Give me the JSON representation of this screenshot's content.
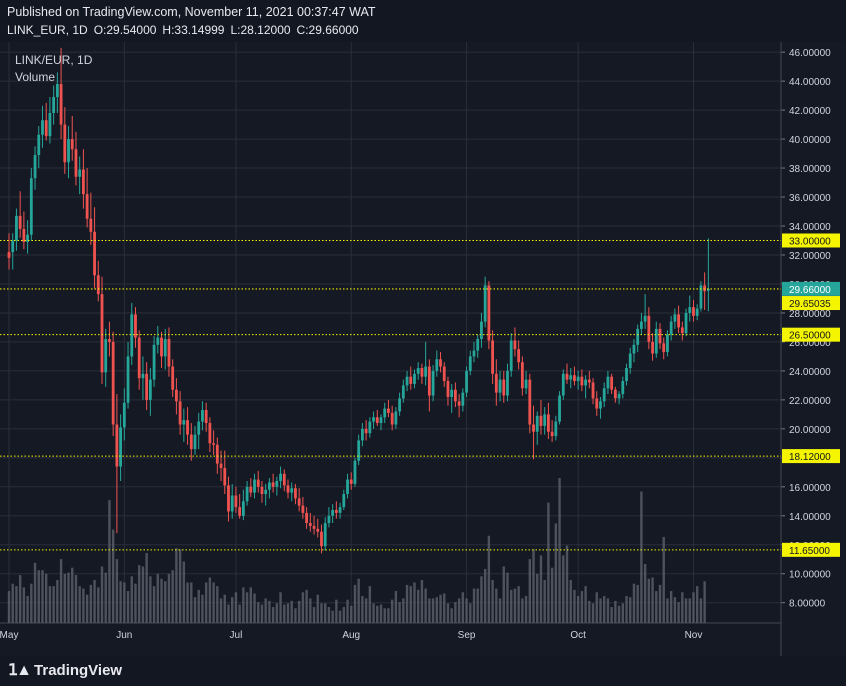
{
  "header": {
    "published": "Published on TradingView.com, November 11, 2021 00:37:47 WAT",
    "symbol": "LINK_EUR, 1D",
    "open": "O:29.54000",
    "high": "H:33.14999",
    "low": "L:28.12000",
    "close": "C:29.66000"
  },
  "legend": {
    "title": "LINK/EUR, 1D",
    "volume": "Volume"
  },
  "footer": {
    "brand": "TradingView",
    "brand_icon": "tradingview-logo-icon"
  },
  "colors": {
    "background": "#151924",
    "up": "#26a69a",
    "down": "#ef5350",
    "grid": "#2a2e39",
    "level": "#f5f500",
    "volume": "#5d606b",
    "last_price": "#26a69a"
  },
  "chart_data": {
    "type": "candlestick",
    "symbol": "LINK/EUR",
    "timeframe": "1D",
    "ylim": [
      6.6,
      46.7
    ],
    "y_ticks": [
      "8.00000",
      "10.00000",
      "12.00000",
      "14.00000",
      "16.00000",
      "18.00000",
      "20.00000",
      "22.00000",
      "24.00000",
      "26.00000",
      "28.00000",
      "30.00000",
      "32.00000",
      "34.00000",
      "36.00000",
      "38.00000",
      "40.00000",
      "42.00000",
      "44.00000",
      "46.00000"
    ],
    "x_ticks": [
      {
        "label": "May",
        "day": 0
      },
      {
        "label": "Jun",
        "day": 31
      },
      {
        "label": "Jul",
        "day": 61
      },
      {
        "label": "Aug",
        "day": 92
      },
      {
        "label": "Sep",
        "day": 123
      },
      {
        "label": "Oct",
        "day": 153
      },
      {
        "label": "Nov",
        "day": 184
      }
    ],
    "days": 194,
    "price_levels": [
      {
        "value": 33.0,
        "label": "33.00000"
      },
      {
        "value": 29.66,
        "label": "29.66000",
        "kind": "last"
      },
      {
        "value": 29.65035,
        "label": "29.65035"
      },
      {
        "value": 26.5,
        "label": "26.50000"
      },
      {
        "value": 18.12,
        "label": "18.12000"
      },
      {
        "value": 11.65,
        "label": "11.65000"
      }
    ],
    "ohlc": [
      [
        32.2,
        33.5,
        31.0,
        31.8
      ],
      [
        32.2,
        33.5,
        31.0,
        33.0
      ],
      [
        33.0,
        35.2,
        32.3,
        34.7
      ],
      [
        34.7,
        36.4,
        33.2,
        33.8
      ],
      [
        33.8,
        35.0,
        32.4,
        32.9
      ],
      [
        32.9,
        34.4,
        32.1,
        33.4
      ],
      [
        33.4,
        38.0,
        33.0,
        37.3
      ],
      [
        37.3,
        39.5,
        36.5,
        38.9
      ],
      [
        38.9,
        40.9,
        38.0,
        40.3
      ],
      [
        40.3,
        42.3,
        39.4,
        41.3
      ],
      [
        41.3,
        42.5,
        39.9,
        40.2
      ],
      [
        40.2,
        42.9,
        39.7,
        41.8
      ],
      [
        41.8,
        43.7,
        41.0,
        42.9
      ],
      [
        42.9,
        44.6,
        41.8,
        43.8
      ],
      [
        43.8,
        46.3,
        40.0,
        41.0
      ],
      [
        41.0,
        42.2,
        37.6,
        38.4
      ],
      [
        38.4,
        40.9,
        37.3,
        40.0
      ],
      [
        40.0,
        41.6,
        38.5,
        39.3
      ],
      [
        39.3,
        40.5,
        36.8,
        37.4
      ],
      [
        37.4,
        38.8,
        36.2,
        37.9
      ],
      [
        37.9,
        39.3,
        35.2,
        36.2
      ],
      [
        36.2,
        38.0,
        33.9,
        34.5
      ],
      [
        34.5,
        36.3,
        32.7,
        33.6
      ],
      [
        33.6,
        35.3,
        29.7,
        30.6
      ],
      [
        30.6,
        31.6,
        28.8,
        29.3
      ],
      [
        29.3,
        30.5,
        23.1,
        23.9
      ],
      [
        23.9,
        26.9,
        22.9,
        26.2
      ],
      [
        26.2,
        27.4,
        25.0,
        26.0
      ],
      [
        26.0,
        26.7,
        19.5,
        20.3
      ],
      [
        20.3,
        22.4,
        12.8,
        17.4
      ],
      [
        17.4,
        21.0,
        16.4,
        20.1
      ],
      [
        20.1,
        22.8,
        19.2,
        21.8
      ],
      [
        21.8,
        26.0,
        21.4,
        25.0
      ],
      [
        25.0,
        28.7,
        24.4,
        27.9
      ],
      [
        27.9,
        28.4,
        25.6,
        26.3
      ],
      [
        26.3,
        26.8,
        22.7,
        23.5
      ],
      [
        23.5,
        25.0,
        22.0,
        23.8
      ],
      [
        23.8,
        24.6,
        21.3,
        22.0
      ],
      [
        22.0,
        24.2,
        20.9,
        23.4
      ],
      [
        23.4,
        26.4,
        22.9,
        25.8
      ],
      [
        25.8,
        27.1,
        25.2,
        26.3
      ],
      [
        26.3,
        26.7,
        24.2,
        25.0
      ],
      [
        25.0,
        26.9,
        24.1,
        26.2
      ],
      [
        26.2,
        27.0,
        23.6,
        24.3
      ],
      [
        24.3,
        24.8,
        22.2,
        22.7
      ],
      [
        22.7,
        23.5,
        21.0,
        21.9
      ],
      [
        21.9,
        22.6,
        19.6,
        20.3
      ],
      [
        20.3,
        21.4,
        19.1,
        20.6
      ],
      [
        20.6,
        21.5,
        18.9,
        19.6
      ],
      [
        19.6,
        20.4,
        17.8,
        18.6
      ],
      [
        18.6,
        20.2,
        18.2,
        19.6
      ],
      [
        19.6,
        21.1,
        18.6,
        20.5
      ],
      [
        20.5,
        21.9,
        19.9,
        21.3
      ],
      [
        21.3,
        21.8,
        19.8,
        20.4
      ],
      [
        20.4,
        20.8,
        18.4,
        19.0
      ],
      [
        19.0,
        19.9,
        18.2,
        18.9
      ],
      [
        18.9,
        19.4,
        16.9,
        17.6
      ],
      [
        17.6,
        18.5,
        16.4,
        17.3
      ],
      [
        17.3,
        18.5,
        15.5,
        16.1
      ],
      [
        16.1,
        16.7,
        13.6,
        14.3
      ],
      [
        14.3,
        16.2,
        13.8,
        15.4
      ],
      [
        15.4,
        16.0,
        14.2,
        14.6
      ],
      [
        14.6,
        15.5,
        13.8,
        14.0
      ],
      [
        14.0,
        15.8,
        13.7,
        15.0
      ],
      [
        15.0,
        16.4,
        14.7,
        16.0
      ],
      [
        16.0,
        16.6,
        15.3,
        15.6
      ],
      [
        15.6,
        16.9,
        15.2,
        16.5
      ],
      [
        16.5,
        17.1,
        15.6,
        16.0
      ],
      [
        16.0,
        16.4,
        14.9,
        15.5
      ],
      [
        15.5,
        16.2,
        14.7,
        15.8
      ],
      [
        15.8,
        16.6,
        15.2,
        16.3
      ],
      [
        16.3,
        16.9,
        15.6,
        16.0
      ],
      [
        16.0,
        16.7,
        15.4,
        16.4
      ],
      [
        16.4,
        17.4,
        15.9,
        16.9
      ],
      [
        16.9,
        17.2,
        15.7,
        16.1
      ],
      [
        16.1,
        16.5,
        15.2,
        15.6
      ],
      [
        15.6,
        16.3,
        15.0,
        15.9
      ],
      [
        15.9,
        16.2,
        14.8,
        15.2
      ],
      [
        15.2,
        15.9,
        14.3,
        14.7
      ],
      [
        14.7,
        15.3,
        13.8,
        14.2
      ],
      [
        14.2,
        14.6,
        13.1,
        13.5
      ],
      [
        13.5,
        14.2,
        12.9,
        13.3
      ],
      [
        13.3,
        14.0,
        12.7,
        13.1
      ],
      [
        13.1,
        13.8,
        12.5,
        12.9
      ],
      [
        12.9,
        13.4,
        11.4,
        11.9
      ],
      [
        11.9,
        13.9,
        11.6,
        13.5
      ],
      [
        13.5,
        14.6,
        13.2,
        14.0
      ],
      [
        14.0,
        14.8,
        13.5,
        14.4
      ],
      [
        14.4,
        15.0,
        13.8,
        14.2
      ],
      [
        14.2,
        14.9,
        13.8,
        14.6
      ],
      [
        14.6,
        15.8,
        14.4,
        15.5
      ],
      [
        15.5,
        16.9,
        15.2,
        16.5
      ],
      [
        16.5,
        17.0,
        15.8,
        16.2
      ],
      [
        16.2,
        18.0,
        16.0,
        17.8
      ],
      [
        17.8,
        19.6,
        17.5,
        19.2
      ],
      [
        19.2,
        20.4,
        18.8,
        20.0
      ],
      [
        20.0,
        20.6,
        19.2,
        19.7
      ],
      [
        19.7,
        20.8,
        19.4,
        20.5
      ],
      [
        20.5,
        21.2,
        20.0,
        20.8
      ],
      [
        20.8,
        21.3,
        20.2,
        20.4
      ],
      [
        20.4,
        21.0,
        19.9,
        20.8
      ],
      [
        20.8,
        21.8,
        20.4,
        21.4
      ],
      [
        21.4,
        22.0,
        20.8,
        21.1
      ],
      [
        21.1,
        21.6,
        19.9,
        20.3
      ],
      [
        20.3,
        21.5,
        20.0,
        21.2
      ],
      [
        21.2,
        22.5,
        20.9,
        22.1
      ],
      [
        22.1,
        23.4,
        21.8,
        23.0
      ],
      [
        23.0,
        24.0,
        22.6,
        23.6
      ],
      [
        23.6,
        24.3,
        22.7,
        23.1
      ],
      [
        23.1,
        24.1,
        22.8,
        23.8
      ],
      [
        23.8,
        24.6,
        23.4,
        24.2
      ],
      [
        24.2,
        24.5,
        23.1,
        23.6
      ],
      [
        23.6,
        26.0,
        23.0,
        24.3
      ],
      [
        24.3,
        24.8,
        21.2,
        22.3
      ],
      [
        22.3,
        24.4,
        21.9,
        24.0
      ],
      [
        24.0,
        25.4,
        23.6,
        24.8
      ],
      [
        24.8,
        25.3,
        23.9,
        24.3
      ],
      [
        24.3,
        24.6,
        22.9,
        23.3
      ],
      [
        23.3,
        23.6,
        21.6,
        22.2
      ],
      [
        22.2,
        23.1,
        21.1,
        22.7
      ],
      [
        22.7,
        23.2,
        21.5,
        21.9
      ],
      [
        21.9,
        22.4,
        20.8,
        21.6
      ],
      [
        21.6,
        22.8,
        21.2,
        22.5
      ],
      [
        22.5,
        24.3,
        22.2,
        24.0
      ],
      [
        24.0,
        25.4,
        23.7,
        25.0
      ],
      [
        25.0,
        26.0,
        24.6,
        25.4
      ],
      [
        25.4,
        26.5,
        24.9,
        26.2
      ],
      [
        26.2,
        28.0,
        25.6,
        27.4
      ],
      [
        27.4,
        30.5,
        27.0,
        29.9
      ],
      [
        29.9,
        30.2,
        25.5,
        26.1
      ],
      [
        26.1,
        26.8,
        23.1,
        23.8
      ],
      [
        23.8,
        24.8,
        21.6,
        22.5
      ],
      [
        22.5,
        24.0,
        21.9,
        23.4
      ],
      [
        23.4,
        24.0,
        21.8,
        22.3
      ],
      [
        22.3,
        24.5,
        21.9,
        24.0
      ],
      [
        24.0,
        26.6,
        23.6,
        26.1
      ],
      [
        26.1,
        27.0,
        25.0,
        25.5
      ],
      [
        25.5,
        26.1,
        24.1,
        24.6
      ],
      [
        24.6,
        25.0,
        22.3,
        22.8
      ],
      [
        22.8,
        24.0,
        22.4,
        23.4
      ],
      [
        23.4,
        23.8,
        19.7,
        20.3
      ],
      [
        20.3,
        21.6,
        17.9,
        19.8
      ],
      [
        19.8,
        21.2,
        18.9,
        20.9
      ],
      [
        20.9,
        22.0,
        19.6,
        20.2
      ],
      [
        20.2,
        21.5,
        19.6,
        21.0
      ],
      [
        21.0,
        21.8,
        19.3,
        19.8
      ],
      [
        19.8,
        20.6,
        19.1,
        19.5
      ],
      [
        19.5,
        20.9,
        19.2,
        20.5
      ],
      [
        20.5,
        22.6,
        20.3,
        22.3
      ],
      [
        22.3,
        24.1,
        22.0,
        23.8
      ],
      [
        23.8,
        24.5,
        23.1,
        23.4
      ],
      [
        23.4,
        24.2,
        22.8,
        23.7
      ],
      [
        23.7,
        24.3,
        23.0,
        23.3
      ],
      [
        23.3,
        24.0,
        22.7,
        23.6
      ],
      [
        23.6,
        24.1,
        22.6,
        23.0
      ],
      [
        23.0,
        23.7,
        22.1,
        23.4
      ],
      [
        23.4,
        24.0,
        22.8,
        23.2
      ],
      [
        23.2,
        23.5,
        21.7,
        22.1
      ],
      [
        22.1,
        22.6,
        20.9,
        21.4
      ],
      [
        21.4,
        22.2,
        20.7,
        21.9
      ],
      [
        21.9,
        23.2,
        21.5,
        22.8
      ],
      [
        22.8,
        24.0,
        22.4,
        23.6
      ],
      [
        23.6,
        23.8,
        22.4,
        22.7
      ],
      [
        22.7,
        22.9,
        21.8,
        22.1
      ],
      [
        22.1,
        22.6,
        21.7,
        22.4
      ],
      [
        22.4,
        23.6,
        22.1,
        23.3
      ],
      [
        23.3,
        24.5,
        23.0,
        24.2
      ],
      [
        24.2,
        25.6,
        23.8,
        25.2
      ],
      [
        25.2,
        26.2,
        24.6,
        25.8
      ],
      [
        25.8,
        27.2,
        25.3,
        26.9
      ],
      [
        26.9,
        28.0,
        26.5,
        27.4
      ],
      [
        27.4,
        29.3,
        26.9,
        27.8
      ],
      [
        27.8,
        28.4,
        25.5,
        26.0
      ],
      [
        26.0,
        26.6,
        24.7,
        25.2
      ],
      [
        25.2,
        27.4,
        24.9,
        26.9
      ],
      [
        26.9,
        27.3,
        25.5,
        25.9
      ],
      [
        25.9,
        26.3,
        24.8,
        25.3
      ],
      [
        25.3,
        26.8,
        25.0,
        26.5
      ],
      [
        26.5,
        27.8,
        26.1,
        27.4
      ],
      [
        27.4,
        28.3,
        26.9,
        27.9
      ],
      [
        27.9,
        28.5,
        26.6,
        27.0
      ],
      [
        27.0,
        27.4,
        26.1,
        26.6
      ],
      [
        26.6,
        28.3,
        26.4,
        28.0
      ],
      [
        28.0,
        29.2,
        27.4,
        28.4
      ],
      [
        28.4,
        28.9,
        27.4,
        27.8
      ],
      [
        27.8,
        28.6,
        27.5,
        28.3
      ],
      [
        28.3,
        30.2,
        28.1,
        29.9
      ],
      [
        29.9,
        30.8,
        28.2,
        29.5
      ],
      [
        29.54,
        33.15,
        28.12,
        29.66
      ]
    ],
    "volume_rel": [
      0.26,
      0.32,
      0.3,
      0.39,
      0.29,
      0.22,
      0.32,
      0.49,
      0.43,
      0.43,
      0.4,
      0.3,
      0.3,
      0.35,
      0.52,
      0.4,
      0.41,
      0.45,
      0.39,
      0.3,
      0.28,
      0.23,
      0.31,
      0.35,
      0.29,
      0.46,
      0.41,
      1.0,
      0.76,
      0.52,
      0.34,
      0.33,
      0.26,
      0.38,
      0.32,
      0.47,
      0.46,
      0.57,
      0.38,
      0.3,
      0.4,
      0.36,
      0.34,
      0.4,
      0.43,
      0.61,
      0.6,
      0.5,
      0.33,
      0.33,
      0.21,
      0.27,
      0.23,
      0.33,
      0.37,
      0.33,
      0.3,
      0.2,
      0.23,
      0.15,
      0.21,
      0.25,
      0.15,
      0.29,
      0.25,
      0.29,
      0.24,
      0.17,
      0.15,
      0.2,
      0.18,
      0.13,
      0.16,
      0.25,
      0.15,
      0.16,
      0.18,
      0.12,
      0.18,
      0.25,
      0.27,
      0.2,
      0.13,
      0.23,
      0.16,
      0.16,
      0.13,
      0.1,
      0.19,
      0.1,
      0.13,
      0.19,
      0.14,
      0.31,
      0.36,
      0.22,
      0.2,
      0.3,
      0.16,
      0.14,
      0.15,
      0.12,
      0.12,
      0.19,
      0.26,
      0.17,
      0.2,
      0.31,
      0.3,
      0.33,
      0.27,
      0.35,
      0.28,
      0.2,
      0.2,
      0.21,
      0.23,
      0.24,
      0.16,
      0.12,
      0.17,
      0.2,
      0.25,
      0.2,
      0.16,
      0.28,
      0.28,
      0.38,
      0.44,
      0.71,
      0.35,
      0.28,
      0.2,
      0.46,
      0.41,
      0.27,
      0.28,
      0.3,
      0.2,
      0.22,
      0.52,
      0.6,
      0.4,
      0.55,
      0.35,
      0.98,
      0.45,
      0.81,
      1.18,
      0.55,
      0.63,
      0.35,
      0.27,
      0.22,
      0.26,
      0.3,
      0.18,
      0.16,
      0.25,
      0.2,
      0.22,
      0.2,
      0.13,
      0.18,
      0.14,
      0.16,
      0.22,
      0.21,
      0.32,
      0.31,
      1.07,
      0.48,
      0.36,
      0.37,
      0.26,
      0.31,
      0.7,
      0.2,
      0.26,
      0.21,
      0.17,
      0.25,
      0.2,
      0.2,
      0.25,
      0.3,
      0.2,
      0.34
    ]
  }
}
